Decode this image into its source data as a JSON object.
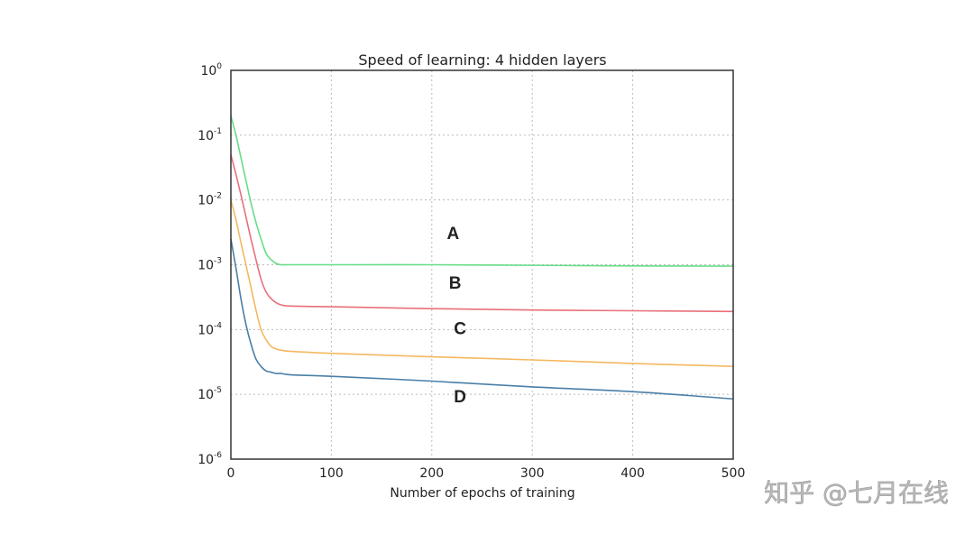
{
  "chart_data": {
    "type": "line",
    "title": "Speed of learning: 4 hidden layers",
    "xlabel": "Number of epochs of training",
    "ylabel": "",
    "xlim": [
      0,
      500
    ],
    "ylim": [
      1e-06,
      1
    ],
    "yscale": "log",
    "grid": true,
    "x_ticks": [
      "0",
      "100",
      "200",
      "300",
      "400",
      "500"
    ],
    "x_tick_values": [
      0,
      100,
      200,
      300,
      400,
      500
    ],
    "y_ticks": [
      {
        "base": "10",
        "exp": "0"
      },
      {
        "base": "10",
        "exp": "-1"
      },
      {
        "base": "10",
        "exp": "-2"
      },
      {
        "base": "10",
        "exp": "-3"
      },
      {
        "base": "10",
        "exp": "-4"
      },
      {
        "base": "10",
        "exp": "-5"
      },
      {
        "base": "10",
        "exp": "-6"
      }
    ],
    "x": [
      0,
      5,
      10,
      15,
      20,
      25,
      30,
      35,
      40,
      45,
      50,
      60,
      100,
      200,
      300,
      400,
      500
    ],
    "series": [
      {
        "name": "A",
        "color": "#66dd88",
        "values": [
          0.2,
          0.1,
          0.045,
          0.02,
          0.009,
          0.0045,
          0.0025,
          0.0015,
          0.0012,
          0.00105,
          0.001,
          0.001,
          0.001,
          0.001,
          0.00098,
          0.00096,
          0.00095
        ]
      },
      {
        "name": "B",
        "color": "#e8707a",
        "values": [
          0.05,
          0.025,
          0.012,
          0.0055,
          0.0025,
          0.0012,
          0.0006,
          0.00038,
          0.0003,
          0.00026,
          0.00024,
          0.00023,
          0.000225,
          0.00021,
          0.0002,
          0.000195,
          0.00019
        ]
      },
      {
        "name": "C",
        "color": "#f5b860",
        "values": [
          0.01,
          0.005,
          0.0022,
          0.001,
          0.00045,
          0.0002,
          0.0001,
          7e-05,
          5.5e-05,
          5e-05,
          4.8e-05,
          4.6e-05,
          4.3e-05,
          3.8e-05,
          3.4e-05,
          3e-05,
          2.7e-05
        ]
      },
      {
        "name": "D",
        "color": "#4a7fa8",
        "values": [
          0.0025,
          0.0009,
          0.0003,
          0.00012,
          6e-05,
          3.5e-05,
          2.7e-05,
          2.3e-05,
          2.2e-05,
          2.1e-05,
          2.1e-05,
          2e-05,
          1.9e-05,
          1.6e-05,
          1.3e-05,
          1.1e-05,
          8.5e-06
        ]
      }
    ],
    "annotations": [
      {
        "text": "A",
        "x": 215,
        "y": 0.0025
      },
      {
        "text": "B",
        "x": 217,
        "y": 0.00043
      },
      {
        "text": "C",
        "x": 222,
        "y": 8.5e-05
      },
      {
        "text": "D",
        "x": 222,
        "y": 7.5e-06
      }
    ]
  },
  "watermark": "知乎 @七月在线"
}
